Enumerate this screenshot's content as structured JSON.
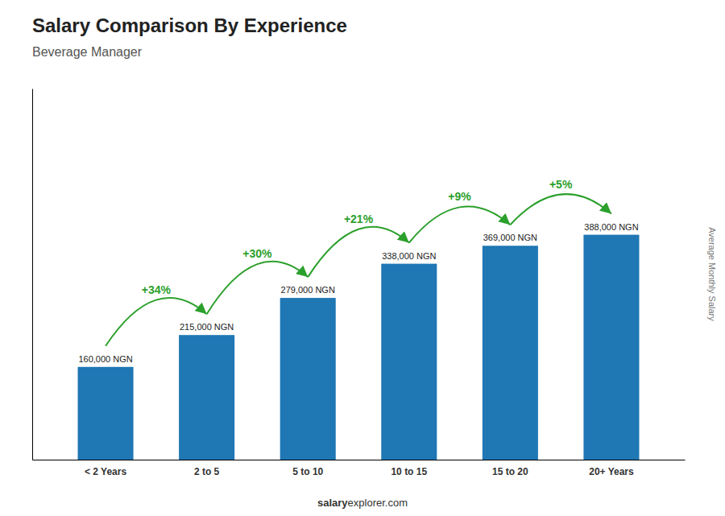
{
  "chart_data": {
    "type": "bar",
    "title": "Salary Comparison By Experience",
    "subtitle": "Beverage Manager",
    "ylabel": "Average Monthly Salary",
    "categories": [
      "< 2 Years",
      "2 to 5",
      "5 to 10",
      "10 to 15",
      "15 to 20",
      "20+ Years"
    ],
    "values": [
      160000,
      215000,
      279000,
      338000,
      369000,
      388000
    ],
    "value_labels": [
      "160,000 NGN",
      "215,000 NGN",
      "279,000 NGN",
      "338,000 NGN",
      "369,000 NGN",
      "388,000 NGN"
    ],
    "data_labels": true,
    "annotations": [
      "+34%",
      "+30%",
      "+21%",
      "+9%",
      "+5%"
    ],
    "footer": [
      "salary",
      "explorer.com"
    ],
    "ylim": [
      0,
      640200
    ],
    "tick_labels": "x"
  }
}
